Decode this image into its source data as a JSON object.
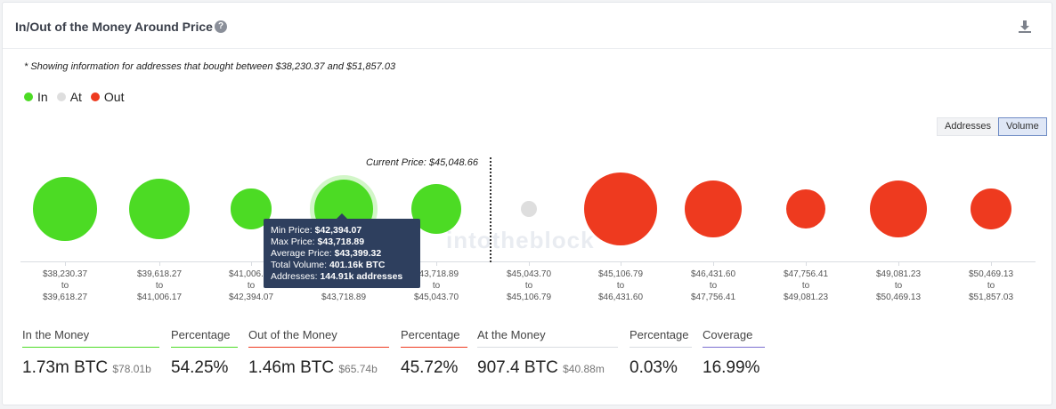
{
  "header": {
    "title": "In/Out of the Money Around Price",
    "help_icon": "help-icon",
    "help_glyph": "?",
    "download_icon": "download-icon"
  },
  "note": "* Showing information for addresses that bought between $38,230.37 and $51,857.03",
  "legend": [
    {
      "label": "In",
      "color": "#4cdb24"
    },
    {
      "label": "At",
      "color": "#dedede"
    },
    {
      "label": "Out",
      "color": "#ee3a1f"
    }
  ],
  "toggle": {
    "addresses_label": "Addresses",
    "volume_label": "Volume",
    "selected": "Volume"
  },
  "chart_data": {
    "type": "bubble",
    "current_price_label": "Current Price: $45,048.66",
    "watermark": "intotheblock",
    "ranges": [
      {
        "from": "$38,230.37",
        "to_word": "to",
        "to": "$39,618.27",
        "status": "In"
      },
      {
        "from": "$39,618.27",
        "to_word": "to",
        "to": "$41,006.17",
        "status": "In"
      },
      {
        "from": "$41,006.17",
        "to_word": "to",
        "to": "$42,394.07",
        "status": "In"
      },
      {
        "from": "$42,394.07",
        "to_word": "to",
        "to": "$43,718.89",
        "status": "In",
        "volume": "401.16k BTC",
        "addresses": "144.91k addresses"
      },
      {
        "from": "$43,718.89",
        "to_word": "to",
        "to": "$45,043.70",
        "status": "In"
      },
      {
        "from": "$45,043.70",
        "to_word": "to",
        "to": "$45,106.79",
        "status": "At"
      },
      {
        "from": "$45,106.79",
        "to_word": "to",
        "to": "$46,431.60",
        "status": "Out"
      },
      {
        "from": "$46,431.60",
        "to_word": "to",
        "to": "$47,756.41",
        "status": "Out"
      },
      {
        "from": "$47,756.41",
        "to_word": "to",
        "to": "$49,081.23",
        "status": "Out"
      },
      {
        "from": "$49,081.23",
        "to_word": "to",
        "to": "$50,469.13",
        "status": "Out"
      },
      {
        "from": "$50,469.13",
        "to_word": "to",
        "to": "$51,857.03",
        "status": "Out"
      }
    ],
    "relative_sizes": [
      0.87,
      0.84,
      0.55,
      0.8,
      0.68,
      0.22,
      1.0,
      0.78,
      0.54,
      0.79,
      0.56
    ]
  },
  "tooltip": {
    "min_label": "Min Price:",
    "min_value": "$42,394.07",
    "max_label": "Max Price:",
    "max_value": "$43,718.89",
    "avg_label": "Average Price:",
    "avg_value": "$43,399.32",
    "vol_label": "Total Volume:",
    "vol_value": "401.16k BTC",
    "addr_label": "Addresses:",
    "addr_value": "144.91k addresses"
  },
  "stats": {
    "in": {
      "label": "In the Money",
      "value": "1.73m BTC",
      "sub": "$78.01b",
      "color": "#4cdb24"
    },
    "in_pct": {
      "label": "Percentage",
      "value": "54.25%",
      "color": "#4cdb24"
    },
    "out": {
      "label": "Out of the Money",
      "value": "1.46m BTC",
      "sub": "$65.74b",
      "color": "#ee3a1f"
    },
    "out_pct": {
      "label": "Percentage",
      "value": "45.72%",
      "color": "#ee3a1f"
    },
    "at": {
      "label": "At the Money",
      "value": "907.4 BTC",
      "sub": "$40.88m",
      "color": "#d9dce1"
    },
    "at_pct": {
      "label": "Percentage",
      "value": "0.03%",
      "color": "#d9dce1"
    },
    "coverage": {
      "label": "Coverage",
      "value": "16.99%",
      "color": "#7b6fd0"
    }
  }
}
